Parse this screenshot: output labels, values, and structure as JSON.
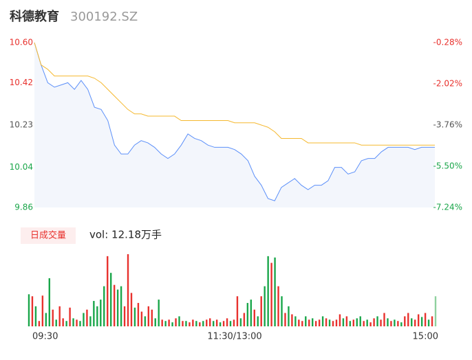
{
  "chart_data": [
    {
      "type": "line",
      "title": "科德教育",
      "subtitle": "300192.SZ",
      "x": [
        0,
        4,
        8,
        12,
        16,
        20,
        24,
        28,
        32,
        36,
        40,
        44,
        48,
        52,
        56,
        60,
        64,
        68,
        72,
        76,
        80,
        84,
        88,
        92,
        96,
        100,
        104,
        108,
        112,
        116,
        120,
        124,
        128,
        132,
        136,
        140,
        144,
        148,
        152,
        156,
        160,
        164,
        168,
        172,
        176,
        180,
        184,
        188,
        192,
        196,
        200,
        204,
        208,
        212,
        216,
        220,
        224,
        228,
        232,
        236,
        240
      ],
      "xlim": [
        0,
        240
      ],
      "xticks": [
        {
          "value": 0,
          "label": "09:30"
        },
        {
          "value": 120,
          "label": "11:30/13:00"
        },
        {
          "value": 240,
          "label": "15:00"
        }
      ],
      "series": [
        {
          "name": "price",
          "color": "#5b8ff9",
          "values": [
            10.6,
            10.5,
            10.42,
            10.4,
            10.41,
            10.42,
            10.39,
            10.43,
            10.39,
            10.31,
            10.3,
            10.25,
            10.14,
            10.1,
            10.1,
            10.14,
            10.16,
            10.15,
            10.13,
            10.1,
            10.08,
            10.1,
            10.14,
            10.19,
            10.17,
            10.16,
            10.14,
            10.13,
            10.13,
            10.13,
            10.12,
            10.1,
            10.07,
            10.0,
            9.96,
            9.9,
            9.89,
            9.95,
            9.97,
            9.99,
            9.96,
            9.94,
            9.96,
            9.96,
            9.98,
            10.04,
            10.04,
            10.01,
            10.02,
            10.07,
            10.08,
            10.08,
            10.11,
            10.13,
            10.13,
            10.13,
            10.13,
            10.12,
            10.13,
            10.13,
            10.13
          ]
        },
        {
          "name": "average",
          "color": "#f5b82e",
          "values": [
            10.6,
            10.5,
            10.48,
            10.45,
            10.45,
            10.45,
            10.45,
            10.45,
            10.45,
            10.44,
            10.42,
            10.39,
            10.36,
            10.33,
            10.3,
            10.28,
            10.28,
            10.27,
            10.27,
            10.27,
            10.27,
            10.27,
            10.25,
            10.25,
            10.25,
            10.25,
            10.25,
            10.25,
            10.25,
            10.25,
            10.24,
            10.24,
            10.24,
            10.24,
            10.23,
            10.22,
            10.2,
            10.17,
            10.17,
            10.17,
            10.17,
            10.15,
            10.15,
            10.15,
            10.15,
            10.15,
            10.15,
            10.15,
            10.15,
            10.14,
            10.14,
            10.14,
            10.14,
            10.14,
            10.14,
            10.14,
            10.14,
            10.14,
            10.14,
            10.14,
            10.14
          ]
        }
      ],
      "ylim": [
        9.86,
        10.6
      ],
      "yticks": [
        {
          "value": 10.6,
          "label": "10.60"
        },
        {
          "value": 10.42,
          "label": "10.42"
        },
        {
          "value": 10.23,
          "label": "10.23"
        },
        {
          "value": 10.04,
          "label": "10.04"
        },
        {
          "value": 9.86,
          "label": "9.86"
        }
      ],
      "ytick_colors": [
        "#e8312d",
        "#e8312d",
        "#555555",
        "#1aa64a",
        "#1aa64a"
      ],
      "y2lim": [
        -7.24,
        -0.28
      ],
      "y2ticks": [
        {
          "value": -0.28,
          "label": "-0.28%"
        },
        {
          "value": -2.02,
          "label": "-2.02%"
        },
        {
          "value": -3.76,
          "label": "-3.76%"
        },
        {
          "value": -5.5,
          "label": "-5.50%"
        },
        {
          "value": -7.24,
          "label": "-7.24%"
        }
      ],
      "y2tick_colors": [
        "#e8312d",
        "#e8312d",
        "#555555",
        "#1aa64a",
        "#1aa64a"
      ],
      "area_color": "#f3f6fc"
    },
    {
      "type": "bar",
      "title": "日成交量",
      "annotation": "vol: 12.18万手",
      "values": [
        1200,
        1125,
        750,
        200,
        1150,
        500,
        1800,
        625,
        250,
        750,
        300,
        200,
        700,
        300,
        250,
        200,
        500,
        625,
        375,
        950,
        750,
        1000,
        1500,
        2625,
        2000,
        1550,
        1375,
        1500,
        750,
        2700,
        1250,
        700,
        875,
        550,
        375,
        750,
        625,
        300,
        1000,
        250,
        200,
        250,
        150,
        300,
        375,
        200,
        200,
        150,
        250,
        200,
        150,
        200,
        250,
        300,
        200,
        250,
        150,
        200,
        300,
        200,
        250,
        1125,
        300,
        500,
        875,
        1000,
        625,
        375,
        1125,
        1500,
        2625,
        2375,
        2575,
        1500,
        1125,
        500,
        750,
        450,
        375,
        250,
        200,
        375,
        250,
        300,
        200,
        250,
        375,
        300,
        250,
        200,
        250,
        450,
        300,
        375,
        200,
        250,
        300,
        375,
        200,
        250,
        150,
        300,
        375,
        250,
        500,
        300,
        200,
        250,
        200,
        150,
        375,
        500,
        300,
        250,
        450,
        350,
        500,
        250,
        375,
        1125
      ],
      "colors": [
        "#1aa64a",
        "#e8312d",
        "#1aa64a",
        "#e8312d",
        "#e8312d",
        "#1aa64a",
        "#1aa64a",
        "#e8312d",
        "#1aa64a",
        "#e8312d",
        "#e8312d",
        "#1aa64a",
        "#e8312d",
        "#1aa64a",
        "#e8312d",
        "#1aa64a",
        "#1aa64a",
        "#e8312d",
        "#1aa64a",
        "#1aa64a",
        "#1aa64a",
        "#1aa64a",
        "#1aa64a",
        "#e8312d",
        "#1aa64a",
        "#e8312d",
        "#1aa64a",
        "#1aa64a",
        "#e8312d",
        "#e8312d",
        "#e8312d",
        "#1aa64a",
        "#e8312d",
        "#e8312d",
        "#1aa64a",
        "#e8312d",
        "#e8312d",
        "#1aa64a",
        "#1aa64a",
        "#e8312d",
        "#1aa64a",
        "#e8312d",
        "#1aa64a",
        "#e8312d",
        "#1aa64a",
        "#e8312d",
        "#1aa64a",
        "#e8312d",
        "#e8312d",
        "#1aa64a",
        "#e8312d",
        "#1aa64a",
        "#e8312d",
        "#e8312d",
        "#1aa64a",
        "#e8312d",
        "#1aa64a",
        "#e8312d",
        "#e8312d",
        "#1aa64a",
        "#e8312d",
        "#e8312d",
        "#1aa64a",
        "#e8312d",
        "#1aa64a",
        "#1aa64a",
        "#e8312d",
        "#1aa64a",
        "#e8312d",
        "#1aa64a",
        "#1aa64a",
        "#e8312d",
        "#1aa64a",
        "#e8312d",
        "#1aa64a",
        "#e8312d",
        "#1aa64a",
        "#e8312d",
        "#1aa64a",
        "#e8312d",
        "#e8312d",
        "#1aa64a",
        "#e8312d",
        "#1aa64a",
        "#e8312d",
        "#e8312d",
        "#1aa64a",
        "#e8312d",
        "#1aa64a",
        "#e8312d",
        "#e8312d",
        "#e8312d",
        "#1aa64a",
        "#e8312d",
        "#1aa64a",
        "#e8312d",
        "#1aa64a",
        "#1aa64a",
        "#e8312d",
        "#1aa64a",
        "#e8312d",
        "#e8312d",
        "#1aa64a",
        "#e8312d",
        "#e8312d",
        "#1aa64a",
        "#e8312d",
        "#1aa64a",
        "#e8312d",
        "#1aa64a",
        "#e8312d",
        "#e8312d",
        "#1aa64a",
        "#e8312d",
        "#e8312d",
        "#1aa64a",
        "#e8312d",
        "#1aa64a",
        "#e8312d",
        "#8fd19e"
      ],
      "ylim": [
        0,
        2750
      ]
    }
  ]
}
